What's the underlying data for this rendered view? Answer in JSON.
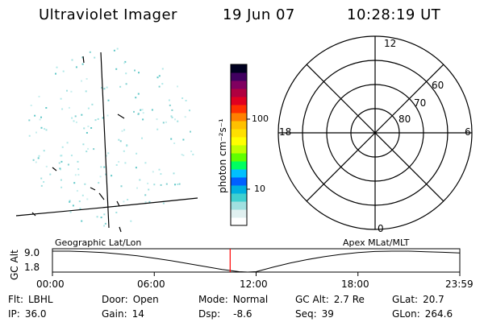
{
  "header": {
    "title": "Ultraviolet Imager",
    "date": "19 Jun 07",
    "time": "10:28:19 UT"
  },
  "colorbar": {
    "unit_label": "photon cm⁻²s⁻¹",
    "ticks": [
      "100",
      "10"
    ],
    "colors": [
      "#ffffff",
      "#e0f0f0",
      "#a0e0e0",
      "#40d0d0",
      "#00b0e0",
      "#0060ff",
      "#00c0ff",
      "#00ff60",
      "#60ff00",
      "#c0ff00",
      "#ffff00",
      "#ffe000",
      "#ffc000",
      "#ff8000",
      "#ff3000",
      "#e00020",
      "#b00040",
      "#800060",
      "#400060",
      "#000020"
    ]
  },
  "polar_plot": {
    "mlt_labels": {
      "top": "12",
      "left": "18",
      "right": "6",
      "bottom": "0"
    },
    "lat_labels": [
      "60",
      "70",
      "80"
    ]
  },
  "orbit_plot": {
    "ylabel": "GC Alt",
    "y_ticks": [
      "9.0",
      "1.8"
    ],
    "left_label": "Geographic Lat/Lon",
    "right_label": "Apex MLat/MLT",
    "x_ticks": [
      "00:00",
      "06:00",
      "12:00",
      "18:00",
      "23:59"
    ],
    "current_time_color": "#ff0000"
  },
  "chart_data": {
    "type": "line",
    "title": "",
    "xlabel": "",
    "ylabel": "GC Alt",
    "x_hours": [
      0,
      1,
      2,
      3,
      4,
      5,
      6,
      7,
      8,
      9,
      10,
      11,
      11.5,
      12,
      13,
      14,
      15,
      16,
      17,
      18,
      19,
      20,
      21,
      22,
      23,
      24
    ],
    "y_alt": [
      9.0,
      9.0,
      8.8,
      8.5,
      8.0,
      7.4,
      6.6,
      5.7,
      4.7,
      3.7,
      2.7,
      1.95,
      1.8,
      1.95,
      3.5,
      4.9,
      6.1,
      7.1,
      7.9,
      8.5,
      8.9,
      9.0,
      9.0,
      8.8,
      8.6,
      8.4
    ],
    "ylim": [
      1.8,
      9.0
    ],
    "xlim": [
      0,
      24
    ],
    "current_hour": 10.47
  },
  "info": {
    "row1": [
      {
        "k": "Flt:",
        "v": "LBHL"
      },
      {
        "k": "Door:",
        "v": "Open"
      },
      {
        "k": "Mode:",
        "v": "Normal"
      },
      {
        "k": "GC Alt:",
        "v": "2.7 Re"
      },
      {
        "k": "GLat:",
        "v": "20.7"
      }
    ],
    "row2": [
      {
        "k": "IP:",
        "v": "36.0"
      },
      {
        "k": "Gain:",
        "v": "14"
      },
      {
        "k": "Dsp:",
        "v": "-8.6"
      },
      {
        "k": "Seq:",
        "v": "39"
      },
      {
        "k": "GLon:",
        "v": "264.6"
      }
    ]
  }
}
